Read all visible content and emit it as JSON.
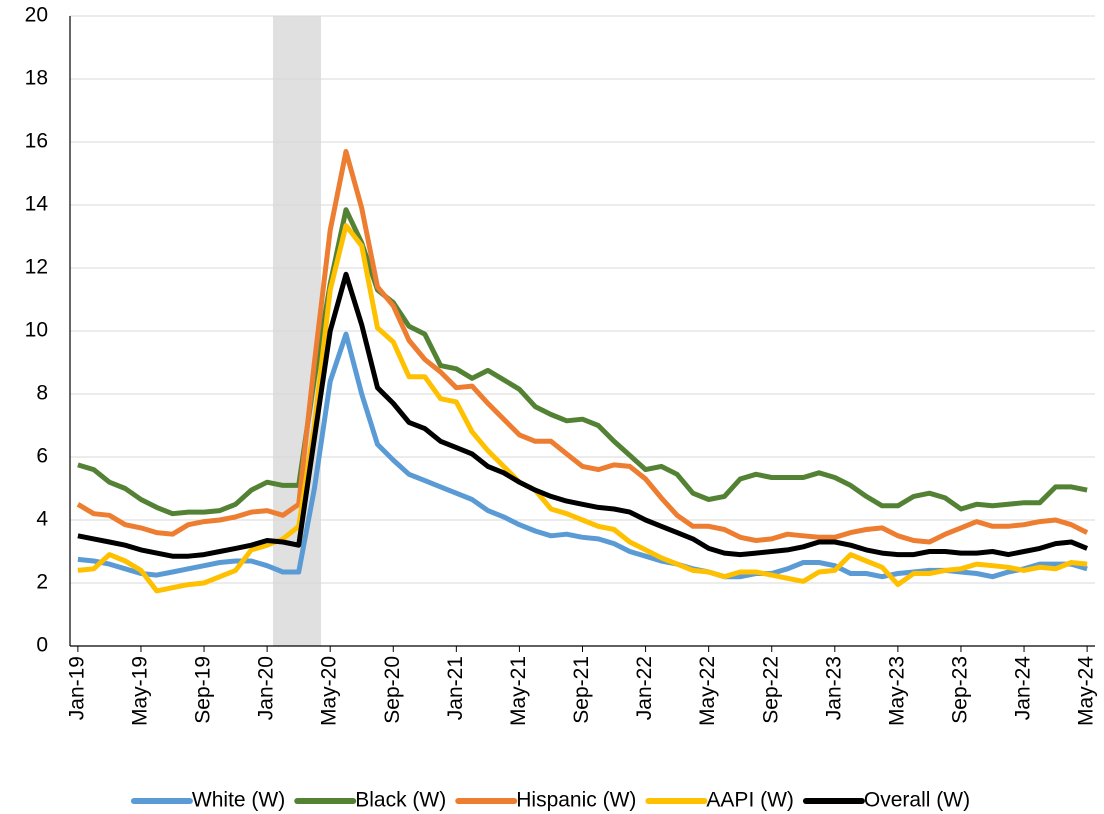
{
  "chart_data": {
    "type": "line",
    "categories": [
      "Jan-19",
      null,
      null,
      null,
      "May-19",
      null,
      null,
      null,
      "Sep-19",
      null,
      null,
      null,
      "Jan-20",
      null,
      null,
      null,
      "May-20",
      null,
      null,
      null,
      "Sep-20",
      null,
      null,
      null,
      "Jan-21",
      null,
      null,
      null,
      "May-21",
      null,
      null,
      null,
      "Sep-21",
      null,
      null,
      null,
      "Jan-22",
      null,
      null,
      null,
      "May-22",
      null,
      null,
      null,
      "Sep-22",
      null,
      null,
      null,
      "Jan-23",
      null,
      null,
      null,
      "May-23",
      null,
      null,
      null,
      "Sep-23",
      null,
      null,
      null,
      "Jan-24",
      null,
      null,
      null,
      "May-24"
    ],
    "series": [
      {
        "name": "White (W)",
        "color": "#5b9bd5",
        "values": [
          2.75,
          2.7,
          2.6,
          2.45,
          2.3,
          2.25,
          2.35,
          2.45,
          2.55,
          2.65,
          2.7,
          2.7,
          2.55,
          2.35,
          2.35,
          5.0,
          8.4,
          9.9,
          8.0,
          6.4,
          5.9,
          5.45,
          5.25,
          5.05,
          4.85,
          4.65,
          4.3,
          4.1,
          3.85,
          3.65,
          3.5,
          3.55,
          3.45,
          3.4,
          3.25,
          3.0,
          2.85,
          2.7,
          2.6,
          2.45,
          2.35,
          2.2,
          2.2,
          2.3,
          2.3,
          2.45,
          2.65,
          2.65,
          2.55,
          2.3,
          2.3,
          2.2,
          2.3,
          2.35,
          2.4,
          2.4,
          2.35,
          2.3,
          2.2,
          2.35,
          2.45,
          2.6,
          2.6,
          2.6,
          2.45
        ]
      },
      {
        "name": "Black (W)",
        "color": "#548235",
        "values": [
          5.75,
          5.6,
          5.2,
          5.0,
          4.65,
          4.4,
          4.2,
          4.25,
          4.25,
          4.3,
          4.5,
          4.95,
          5.2,
          5.1,
          5.1,
          8.5,
          11.5,
          13.85,
          12.8,
          11.3,
          10.9,
          10.15,
          9.9,
          8.9,
          8.8,
          8.5,
          8.75,
          8.45,
          8.15,
          7.6,
          7.35,
          7.15,
          7.2,
          7.0,
          6.5,
          6.05,
          5.6,
          5.7,
          5.45,
          4.85,
          4.65,
          4.75,
          5.3,
          5.45,
          5.35,
          5.35,
          5.35,
          5.5,
          5.35,
          5.1,
          4.75,
          4.45,
          4.45,
          4.75,
          4.85,
          4.7,
          4.35,
          4.5,
          4.45,
          4.5,
          4.55,
          4.55,
          5.05,
          5.05,
          4.95
        ]
      },
      {
        "name": "Hispanic (W)",
        "color": "#ed7d31",
        "values": [
          4.5,
          4.2,
          4.15,
          3.85,
          3.75,
          3.6,
          3.55,
          3.85,
          3.95,
          4.0,
          4.1,
          4.25,
          4.3,
          4.15,
          4.5,
          9.0,
          13.2,
          15.7,
          13.9,
          11.4,
          10.8,
          9.7,
          9.1,
          8.7,
          8.2,
          8.25,
          7.7,
          7.2,
          6.7,
          6.5,
          6.5,
          6.1,
          5.7,
          5.6,
          5.75,
          5.7,
          5.3,
          4.7,
          4.15,
          3.8,
          3.8,
          3.7,
          3.45,
          3.35,
          3.4,
          3.55,
          3.5,
          3.45,
          3.45,
          3.6,
          3.7,
          3.75,
          3.5,
          3.35,
          3.3,
          3.55,
          3.75,
          3.95,
          3.8,
          3.8,
          3.85,
          3.95,
          4.0,
          3.85,
          3.6
        ]
      },
      {
        "name": "AAPI (W)",
        "color": "#ffc000",
        "values": [
          2.4,
          2.45,
          2.9,
          2.7,
          2.4,
          1.75,
          1.85,
          1.95,
          2.0,
          2.2,
          2.4,
          3.05,
          3.2,
          3.4,
          3.8,
          7.0,
          11.3,
          13.35,
          12.7,
          10.1,
          9.65,
          8.55,
          8.55,
          7.85,
          7.75,
          6.8,
          6.2,
          5.7,
          5.2,
          4.95,
          4.35,
          4.2,
          4.0,
          3.8,
          3.7,
          3.3,
          3.05,
          2.8,
          2.6,
          2.4,
          2.35,
          2.2,
          2.35,
          2.35,
          2.25,
          2.15,
          2.05,
          2.35,
          2.4,
          2.9,
          2.7,
          2.5,
          1.95,
          2.3,
          2.3,
          2.4,
          2.45,
          2.6,
          2.55,
          2.5,
          2.4,
          2.5,
          2.45,
          2.65,
          2.6
        ]
      },
      {
        "name": "Overall (W)",
        "color": "#000000",
        "values": [
          3.5,
          3.4,
          3.3,
          3.2,
          3.05,
          2.95,
          2.85,
          2.85,
          2.9,
          3.0,
          3.1,
          3.2,
          3.35,
          3.3,
          3.2,
          6.6,
          10.0,
          11.8,
          10.2,
          8.2,
          7.7,
          7.1,
          6.9,
          6.5,
          6.3,
          6.1,
          5.7,
          5.5,
          5.2,
          4.95,
          4.75,
          4.6,
          4.5,
          4.4,
          4.35,
          4.25,
          4.0,
          3.8,
          3.6,
          3.4,
          3.1,
          2.95,
          2.9,
          2.95,
          3.0,
          3.05,
          3.15,
          3.3,
          3.3,
          3.2,
          3.05,
          2.95,
          2.9,
          2.9,
          3.0,
          3.0,
          2.95,
          2.95,
          3.0,
          2.9,
          3.0,
          3.1,
          3.25,
          3.3,
          3.1
        ]
      }
    ],
    "ylim": [
      0,
      20
    ],
    "yticks": [
      0,
      2,
      4,
      6,
      8,
      10,
      12,
      14,
      16,
      18,
      20
    ],
    "grid": true,
    "legend": "bottom"
  }
}
